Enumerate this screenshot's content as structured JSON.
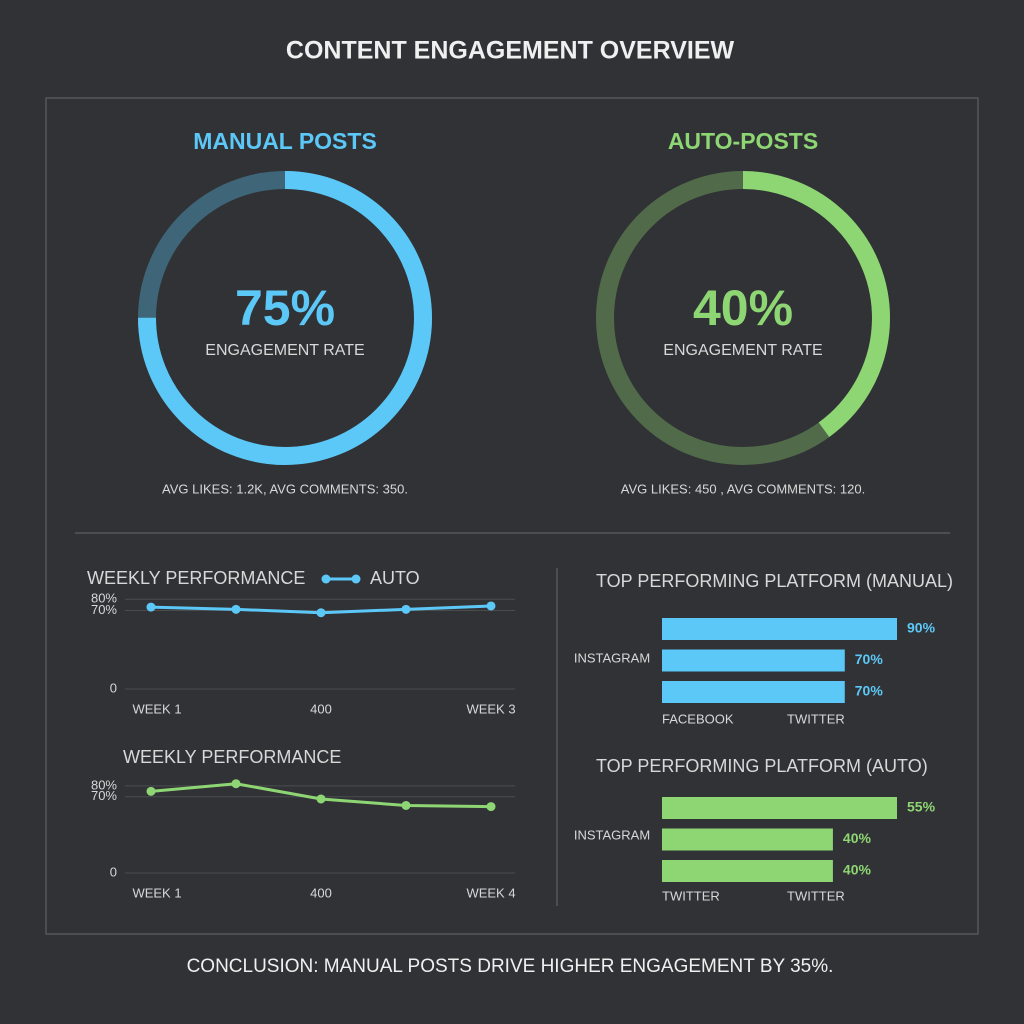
{
  "title": "CONTENT ENGAGEMENT OVERVIEW",
  "conclusion": "CONCLUSION: MANUAL POSTS DRIVE HIGHER ENGAGEMENT BY 35%.",
  "chart_data": [
    {
      "type": "gauge",
      "title": "MANUAL POSTS",
      "values": [
        75
      ],
      "value_labels": [
        "75%"
      ],
      "label": "ENGAGEMENT RATE",
      "color": "#5cc8f7",
      "note": "AVG LIKES: 1.2K, AVG COMMENTS: 350."
    },
    {
      "type": "gauge",
      "title": "AUTO-POSTS",
      "values": [
        40
      ],
      "value_labels": [
        "40%"
      ],
      "label": "ENGAGEMENT RATE",
      "color": "#8ed674",
      "note": "AVG LIKES: 450 , AVG COMMENTS: 120."
    },
    {
      "type": "line",
      "title": "WEEKLY PERFORMANCE",
      "categories": [
        "WEEK 1",
        null,
        "400",
        null,
        "WEEK 3"
      ],
      "series": [
        {
          "name": "AUTO",
          "color": "#5cc8f7",
          "values": [
            73,
            71,
            68,
            71,
            74
          ]
        }
      ],
      "ylim": [
        0,
        82
      ],
      "yticks": [
        {
          "value": 80,
          "label": "80%"
        },
        {
          "value": 70,
          "label": "70%"
        },
        0
      ],
      "grid": true
    },
    {
      "type": "line",
      "title": "WEEKLY PERFORMANCE",
      "categories": [
        "WEEK 1",
        null,
        "400",
        null,
        "WEEK 4"
      ],
      "series": [
        {
          "color": "#8ed674",
          "values": [
            75,
            82,
            68,
            62,
            61
          ]
        }
      ],
      "ylim": [
        0,
        90
      ],
      "yticks": [
        {
          "value": 70,
          "label": "70%"
        },
        {
          "value": 80,
          "label": "80%"
        },
        0
      ],
      "grid": true
    },
    {
      "type": "hbar",
      "title": "TOP PERFORMING PLATFORM (MANUAL)",
      "values": [
        90,
        70,
        70
      ],
      "value_labels": [
        "90%",
        "70%",
        "70%"
      ],
      "color": "#5cc8f7",
      "side_label": "INSTAGRAM",
      "bottom_labels": [
        "FACEBOOK",
        "TWITTER"
      ]
    },
    {
      "type": "hbar",
      "title": "TOP PERFORMING PLATFORM (AUTO)",
      "values": [
        55,
        40,
        40
      ],
      "value_labels": [
        "55%",
        "40%",
        "40%"
      ],
      "color": "#8ed674",
      "side_label": "INSTAGRAM",
      "bottom_labels": [
        "TWITTER",
        "TWITTER"
      ]
    }
  ]
}
